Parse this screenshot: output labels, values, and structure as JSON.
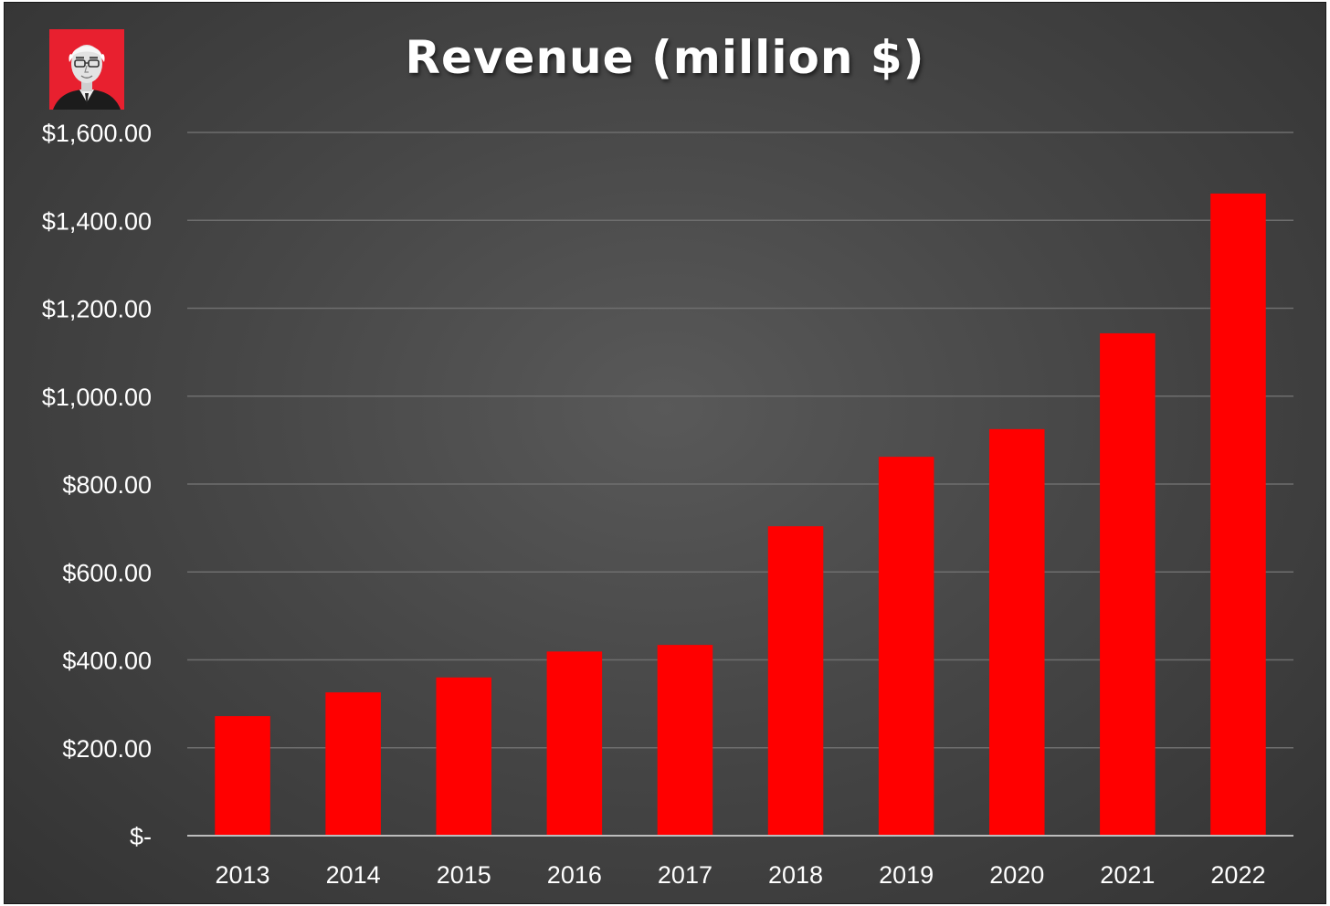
{
  "chart_data": {
    "type": "bar",
    "title": "Revenue (million $)",
    "xlabel": "",
    "ylabel": "",
    "categories": [
      "2013",
      "2014",
      "2015",
      "2016",
      "2017",
      "2018",
      "2019",
      "2020",
      "2021",
      "2022"
    ],
    "values": [
      272,
      326,
      360,
      419,
      434,
      704,
      862,
      925,
      1143,
      1461
    ],
    "ylim": [
      0,
      1600
    ],
    "y_ticks": [
      0,
      200,
      400,
      600,
      800,
      1000,
      1200,
      1400,
      1600
    ],
    "y_tick_labels": [
      "$-",
      "$200.00",
      "$400.00",
      "$600.00",
      "$800.00",
      "$1,000.00",
      "$1,200.00",
      "$1,400.00",
      "$1,600.00"
    ],
    "grid": true,
    "legend": "none",
    "bar_color": "#ff0000",
    "background_color": "#474747",
    "logo_color": "#e8202f"
  }
}
